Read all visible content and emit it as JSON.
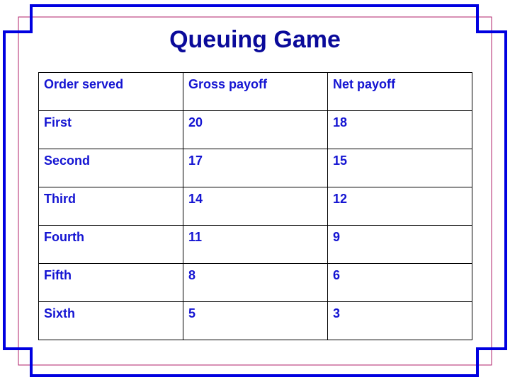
{
  "title": "Queuing Game",
  "table": {
    "headers": [
      "Order served",
      "Gross payoff",
      "Net payoff"
    ],
    "rows": [
      [
        "First",
        "20",
        "18"
      ],
      [
        "Second",
        "17",
        "15"
      ],
      [
        "Third",
        "14",
        "12"
      ],
      [
        "Fourth",
        "11",
        "9"
      ],
      [
        "Fifth",
        "8",
        "6"
      ],
      [
        "Sixth",
        "5",
        "3"
      ]
    ]
  },
  "colors": {
    "title": "#0a0a9a",
    "cell_text": "#1414d2",
    "frame_outer": "#0000e0",
    "frame_inner": "#b0206a"
  }
}
